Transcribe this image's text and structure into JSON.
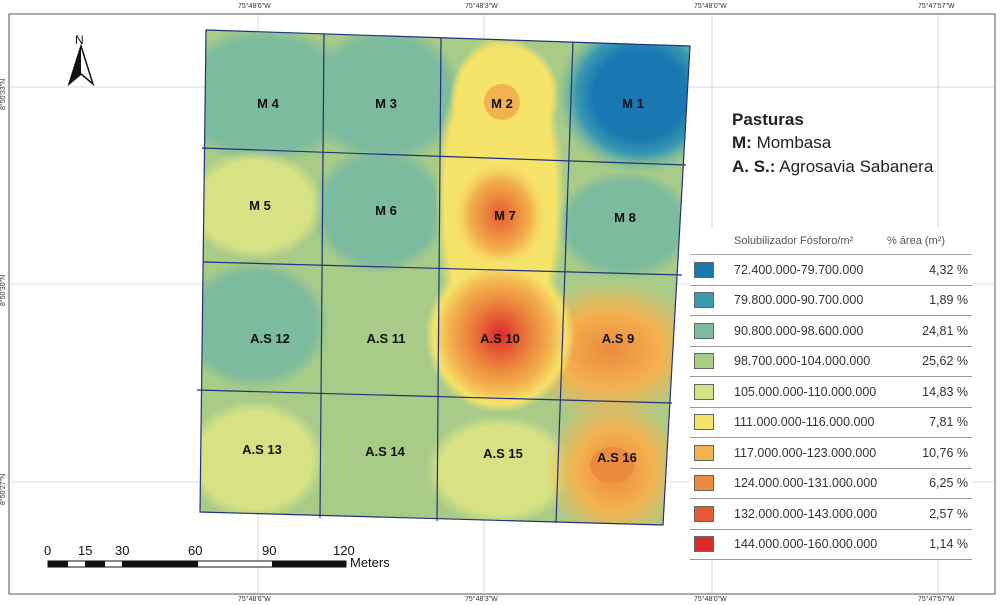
{
  "coords": {
    "top": [
      "75°48'6\"W",
      "75°48'3\"W",
      "75°48'0\"W",
      "75°47'57\"W"
    ],
    "bottom": [
      "75°48'6\"W",
      "75°48'3\"W",
      "75°48'0\"W",
      "75°47'57\"W"
    ],
    "left": [
      "8°50'33\"N",
      "8°50'30\"N",
      "8°50'27\"N"
    ]
  },
  "north_label": "N",
  "plots": [
    "M 1",
    "M 2",
    "M 3",
    "M 4",
    "M 5",
    "M 6",
    "M 7",
    "M 8",
    "A.S 9",
    "A.S 10",
    "A.S 11",
    "A.S 12",
    "A.S 13",
    "A.S 14",
    "A.S 15",
    "A.S 16"
  ],
  "legend": {
    "title": "Pasturas",
    "line1_key": "M:",
    "line1_value": "Mombasa",
    "line2_key": "A. S.:",
    "line2_value": "Agrosavia Sabanera",
    "col1_header": "Solubilizador Fósforo/m²",
    "col2_header": "% área (m²)",
    "classes": [
      {
        "range": "72.400.000-79.700.000",
        "pct": "4,32 %",
        "color": "#1a78b0"
      },
      {
        "range": "79.800.000-90.700.000",
        "pct": "1,89 %",
        "color": "#3a9ab0"
      },
      {
        "range": "90.800.000-98.600.000",
        "pct": "24,81 %",
        "color": "#7dbb9e"
      },
      {
        "range": "98.700.000-104.000.000",
        "pct": "25,62 %",
        "color": "#a8cc88"
      },
      {
        "range": "105.000.000-110.000.000",
        "pct": "14,83 %",
        "color": "#d7e284"
      },
      {
        "range": "111.000.000-116.000.000",
        "pct": "7,81 %",
        "color": "#f6e36a"
      },
      {
        "range": "117.000.000-123.000.000",
        "pct": "10,76 %",
        "color": "#f3b24f"
      },
      {
        "range": "124.000.000-131.000.000",
        "pct": "6,25 %",
        "color": "#ec8a3e"
      },
      {
        "range": "132.000.000-143.000.000",
        "pct": "2,57 %",
        "color": "#e55a34"
      },
      {
        "range": "144.000.000-160.000.000",
        "pct": "1,14 %",
        "color": "#d8292b"
      }
    ]
  },
  "scale": {
    "ticks": [
      "0",
      "15",
      "30",
      "60",
      "90",
      "120"
    ],
    "unit": "Meters"
  }
}
